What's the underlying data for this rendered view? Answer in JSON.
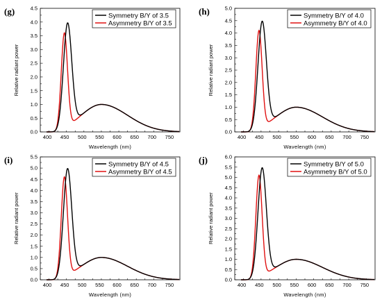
{
  "chart_data": [
    {
      "type": "line",
      "panel_label": "(g)",
      "xlabel": "Wavelength (nm)",
      "ylabel": "Relative radiant power",
      "xlim": [
        380,
        780
      ],
      "ylim": [
        0,
        4.5
      ],
      "xticks": [
        400,
        450,
        500,
        550,
        600,
        650,
        700,
        750
      ],
      "yticks": [
        0.0,
        0.5,
        1.0,
        1.5,
        2.0,
        2.5,
        3.0,
        3.5,
        4.0,
        4.5
      ],
      "grid": false,
      "legend_position": "top-right",
      "series": [
        {
          "name": "Symmetry B/Y of 3.5",
          "color": "#000000",
          "blue_peak_nm": 458,
          "blue_peak_value": 3.82,
          "blue_width_nm": 12,
          "yellow_peak_nm": 555,
          "yellow_peak_value": 1.0
        },
        {
          "name": "Asymmetry B/Y of 3.5",
          "color": "#e01010",
          "blue_peak_nm": 449,
          "blue_peak_value": 3.55,
          "blue_width_nm": 9,
          "yellow_peak_nm": 555,
          "yellow_peak_value": 1.0
        }
      ]
    },
    {
      "type": "line",
      "panel_label": "(h)",
      "xlabel": "Wavelength (nm)",
      "ylabel": "Relative radiant power",
      "xlim": [
        380,
        780
      ],
      "ylim": [
        0,
        5.0
      ],
      "xticks": [
        400,
        450,
        500,
        550,
        600,
        650,
        700,
        750
      ],
      "yticks": [
        0.0,
        0.5,
        1.0,
        1.5,
        2.0,
        2.5,
        3.0,
        3.5,
        4.0,
        4.5,
        5.0
      ],
      "grid": false,
      "legend_position": "top-right",
      "series": [
        {
          "name": "Symmetry B/Y of 4.0",
          "color": "#000000",
          "blue_peak_nm": 458,
          "blue_peak_value": 4.33,
          "blue_width_nm": 12,
          "yellow_peak_nm": 555,
          "yellow_peak_value": 1.0
        },
        {
          "name": "Asymmetry B/Y of 4.0",
          "color": "#e01010",
          "blue_peak_nm": 449,
          "blue_peak_value": 4.05,
          "blue_width_nm": 9,
          "yellow_peak_nm": 555,
          "yellow_peak_value": 1.0
        }
      ]
    },
    {
      "type": "line",
      "panel_label": "(i)",
      "xlabel": "Wavelength (nm)",
      "ylabel": "Relative radiant power",
      "xlim": [
        380,
        780
      ],
      "ylim": [
        0,
        5.5
      ],
      "xticks": [
        400,
        450,
        500,
        550,
        600,
        650,
        700,
        750
      ],
      "yticks": [
        0.0,
        0.5,
        1.0,
        1.5,
        2.0,
        2.5,
        3.0,
        3.5,
        4.0,
        4.5,
        5.0,
        5.5
      ],
      "grid": false,
      "legend_position": "top-right",
      "series": [
        {
          "name": "Symmetry B/Y of 4.5",
          "color": "#000000",
          "blue_peak_nm": 458,
          "blue_peak_value": 4.83,
          "blue_width_nm": 12,
          "yellow_peak_nm": 555,
          "yellow_peak_value": 1.0
        },
        {
          "name": "Asymmetry B/Y of 4.5",
          "color": "#e01010",
          "blue_peak_nm": 449,
          "blue_peak_value": 4.55,
          "blue_width_nm": 9,
          "yellow_peak_nm": 555,
          "yellow_peak_value": 1.0
        }
      ]
    },
    {
      "type": "line",
      "panel_label": "(j)",
      "xlabel": "Wavelength (nm)",
      "ylabel": "Relative radiant power",
      "xlim": [
        380,
        780
      ],
      "ylim": [
        0,
        6.0
      ],
      "xticks": [
        400,
        450,
        500,
        550,
        600,
        650,
        700,
        750
      ],
      "yticks": [
        0.0,
        0.5,
        1.0,
        1.5,
        2.0,
        2.5,
        3.0,
        3.5,
        4.0,
        4.5,
        5.0,
        5.5,
        6.0
      ],
      "grid": false,
      "legend_position": "top-right",
      "series": [
        {
          "name": "Symmetry B/Y of 5.0",
          "color": "#000000",
          "blue_peak_nm": 458,
          "blue_peak_value": 5.32,
          "blue_width_nm": 12,
          "yellow_peak_nm": 555,
          "yellow_peak_value": 1.0
        },
        {
          "name": "Asymmetry B/Y of 5.0",
          "color": "#e01010",
          "blue_peak_nm": 449,
          "blue_peak_value": 5.05,
          "blue_width_nm": 9,
          "yellow_peak_nm": 555,
          "yellow_peak_value": 1.0
        }
      ]
    }
  ]
}
